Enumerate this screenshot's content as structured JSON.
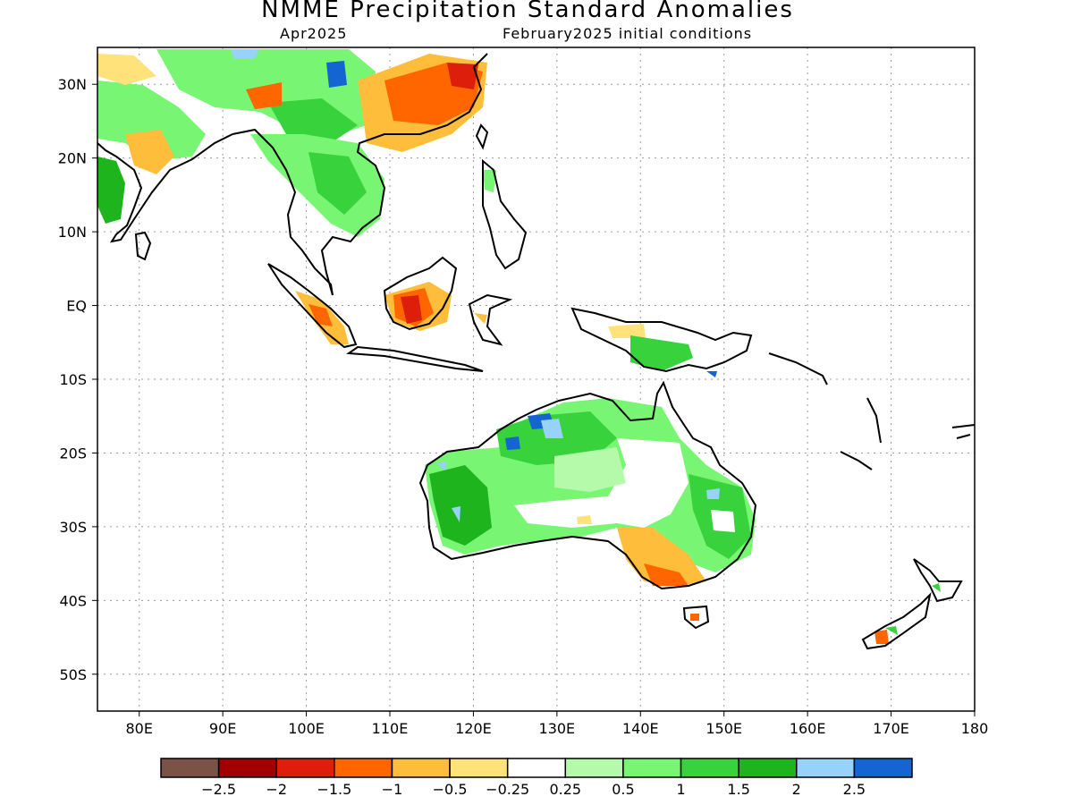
{
  "title": "NMME Precipitation Standard Anomalies",
  "subtitle_left": "Apr2025",
  "subtitle_right": "February2025 initial conditions",
  "map": {
    "lon_range": [
      75,
      180
    ],
    "lat_range": [
      -55,
      35
    ],
    "lat_ticks": [
      {
        "value": 30,
        "label": "30N"
      },
      {
        "value": 20,
        "label": "20N"
      },
      {
        "value": 10,
        "label": "10N"
      },
      {
        "value": 0,
        "label": "EQ"
      },
      {
        "value": -10,
        "label": "10S"
      },
      {
        "value": -20,
        "label": "20S"
      },
      {
        "value": -30,
        "label": "30S"
      },
      {
        "value": -40,
        "label": "40S"
      },
      {
        "value": -50,
        "label": "50S"
      }
    ],
    "lon_ticks": [
      {
        "value": 80,
        "label": "80E"
      },
      {
        "value": 90,
        "label": "90E"
      },
      {
        "value": 100,
        "label": "100E"
      },
      {
        "value": 110,
        "label": "110E"
      },
      {
        "value": 120,
        "label": "120E"
      },
      {
        "value": 130,
        "label": "130E"
      },
      {
        "value": 140,
        "label": "140E"
      },
      {
        "value": 150,
        "label": "150E"
      },
      {
        "value": 160,
        "label": "160E"
      },
      {
        "value": 170,
        "label": "170E"
      },
      {
        "value": 180,
        "label": "180"
      }
    ]
  },
  "colorbar": {
    "colors": [
      "#7a5246",
      "#a00000",
      "#dc1e0a",
      "#ff6600",
      "#ffbd3c",
      "#ffe27a",
      "#ffffff",
      "#b4faaa",
      "#78f573",
      "#37d23c",
      "#1eb41e",
      "#96d2fa",
      "#1464d2"
    ],
    "labels": [
      "−2.5",
      "−2",
      "−1.5",
      "−1",
      "−0.5",
      "−0.25",
      "0.25",
      "0.5",
      "1",
      "1.5",
      "2",
      "2.5"
    ]
  }
}
